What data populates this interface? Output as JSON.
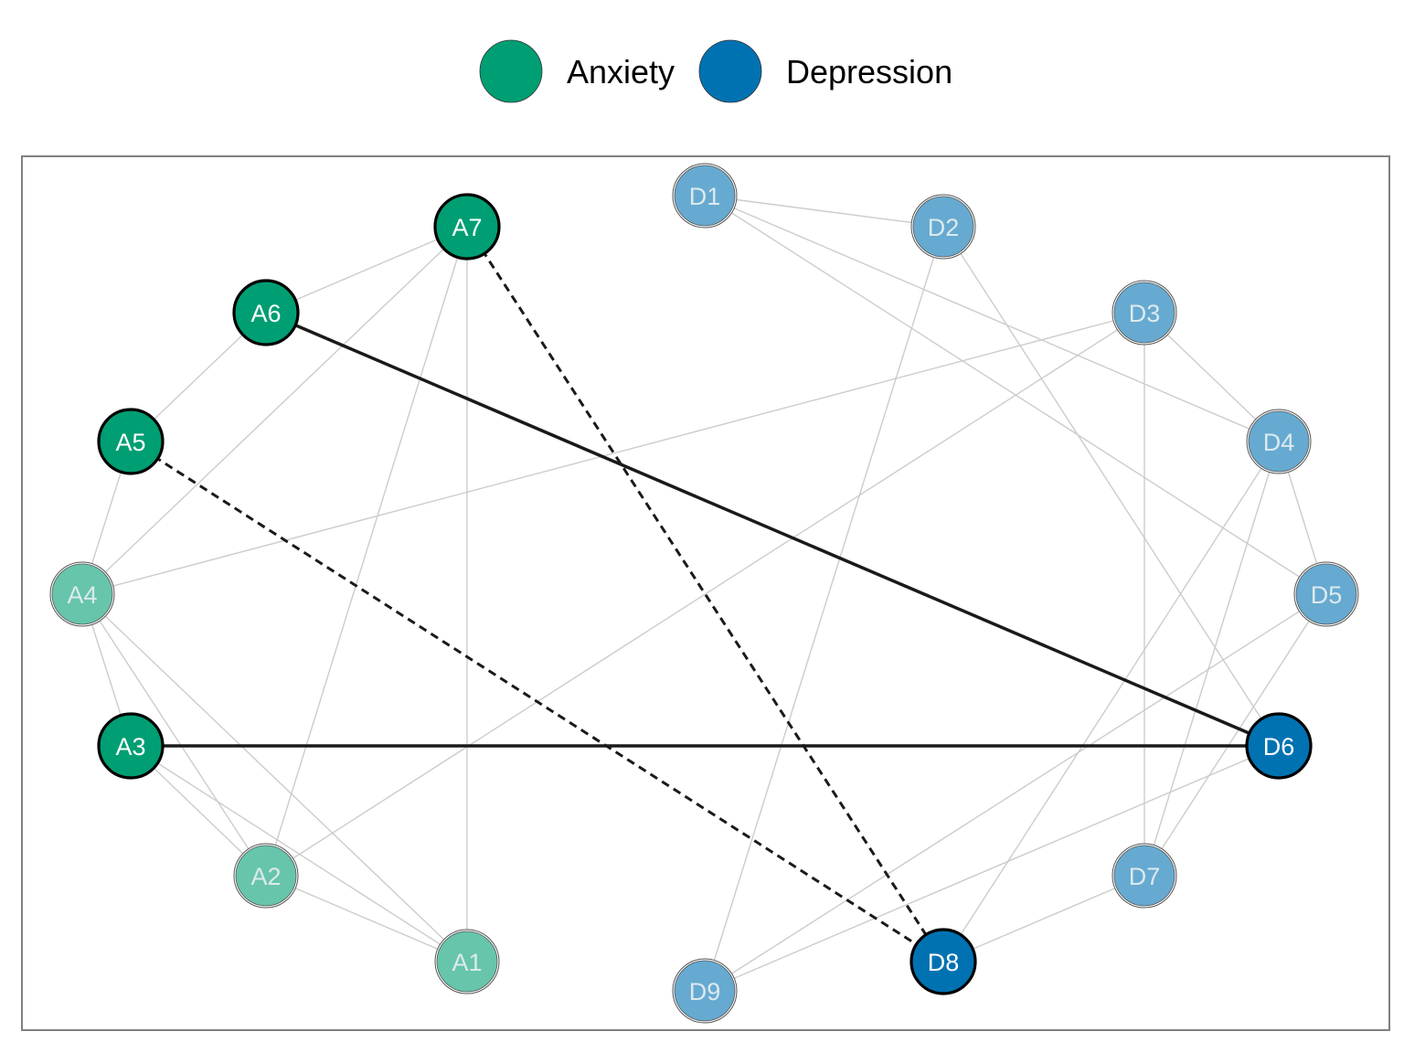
{
  "colors": {
    "anxiety": "#009E73",
    "depression": "#0072B2",
    "edge_light": "#cccccc",
    "edge_strong": "#1a1a1a",
    "frame": "#808080"
  },
  "legend": [
    {
      "group": "anxiety",
      "label": "Anxiety"
    },
    {
      "group": "depression",
      "label": "Depression"
    }
  ],
  "nodes": [
    {
      "id": "A1",
      "label": "A1",
      "group": "anxiety",
      "highlight": false
    },
    {
      "id": "A2",
      "label": "A2",
      "group": "anxiety",
      "highlight": false
    },
    {
      "id": "A3",
      "label": "A3",
      "group": "anxiety",
      "highlight": true
    },
    {
      "id": "A4",
      "label": "A4",
      "group": "anxiety",
      "highlight": false
    },
    {
      "id": "A5",
      "label": "A5",
      "group": "anxiety",
      "highlight": true
    },
    {
      "id": "A6",
      "label": "A6",
      "group": "anxiety",
      "highlight": true
    },
    {
      "id": "A7",
      "label": "A7",
      "group": "anxiety",
      "highlight": true
    },
    {
      "id": "D1",
      "label": "D1",
      "group": "depression",
      "highlight": false
    },
    {
      "id": "D2",
      "label": "D2",
      "group": "depression",
      "highlight": false
    },
    {
      "id": "D3",
      "label": "D3",
      "group": "depression",
      "highlight": false
    },
    {
      "id": "D4",
      "label": "D4",
      "group": "depression",
      "highlight": false
    },
    {
      "id": "D5",
      "label": "D5",
      "group": "depression",
      "highlight": false
    },
    {
      "id": "D6",
      "label": "D6",
      "group": "depression",
      "highlight": true
    },
    {
      "id": "D7",
      "label": "D7",
      "group": "depression",
      "highlight": false
    },
    {
      "id": "D8",
      "label": "D8",
      "group": "depression",
      "highlight": true
    },
    {
      "id": "D9",
      "label": "D9",
      "group": "depression",
      "highlight": false
    }
  ],
  "edges": [
    {
      "from": "A6",
      "to": "D6",
      "style": "solid-strong"
    },
    {
      "from": "A3",
      "to": "D6",
      "style": "solid-strong"
    },
    {
      "from": "A7",
      "to": "D8",
      "style": "dashed-strong"
    },
    {
      "from": "A5",
      "to": "D8",
      "style": "dashed-strong"
    },
    {
      "from": "A7",
      "to": "A6",
      "style": "light"
    },
    {
      "from": "A7",
      "to": "A4",
      "style": "light"
    },
    {
      "from": "A7",
      "to": "A2",
      "style": "light"
    },
    {
      "from": "A7",
      "to": "A1",
      "style": "light"
    },
    {
      "from": "A6",
      "to": "A5",
      "style": "light"
    },
    {
      "from": "A5",
      "to": "A4",
      "style": "light"
    },
    {
      "from": "A4",
      "to": "A3",
      "style": "light"
    },
    {
      "from": "A4",
      "to": "A2",
      "style": "light"
    },
    {
      "from": "A4",
      "to": "A1",
      "style": "light"
    },
    {
      "from": "A4",
      "to": "D3",
      "style": "light"
    },
    {
      "from": "A3",
      "to": "A2",
      "style": "light"
    },
    {
      "from": "A3",
      "to": "A1",
      "style": "light"
    },
    {
      "from": "A2",
      "to": "A1",
      "style": "light"
    },
    {
      "from": "A2",
      "to": "D3",
      "style": "light"
    },
    {
      "from": "D1",
      "to": "D2",
      "style": "light"
    },
    {
      "from": "D1",
      "to": "D4",
      "style": "light"
    },
    {
      "from": "D1",
      "to": "D5",
      "style": "light"
    },
    {
      "from": "D2",
      "to": "D9",
      "style": "light"
    },
    {
      "from": "D2",
      "to": "D6",
      "style": "light"
    },
    {
      "from": "D3",
      "to": "D4",
      "style": "light"
    },
    {
      "from": "D3",
      "to": "D7",
      "style": "light"
    },
    {
      "from": "D4",
      "to": "D5",
      "style": "light"
    },
    {
      "from": "D4",
      "to": "D7",
      "style": "light"
    },
    {
      "from": "D4",
      "to": "D8",
      "style": "light"
    },
    {
      "from": "D5",
      "to": "D7",
      "style": "light"
    },
    {
      "from": "D5",
      "to": "D9",
      "style": "light"
    },
    {
      "from": "D6",
      "to": "D9",
      "style": "light"
    },
    {
      "from": "D7",
      "to": "D8",
      "style": "light"
    }
  ]
}
